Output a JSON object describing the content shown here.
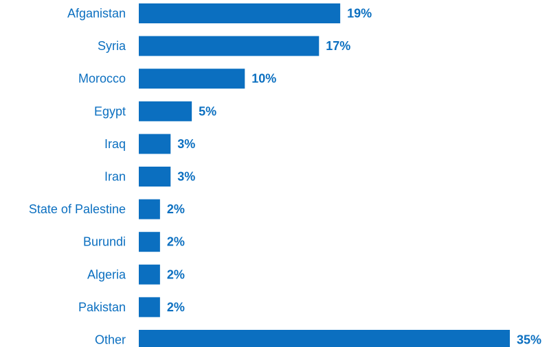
{
  "chart_data": {
    "type": "bar",
    "orientation": "horizontal",
    "title": "",
    "xlabel": "",
    "ylabel": "",
    "categories": [
      "Afganistan",
      "Syria",
      "Morocco",
      "Egypt",
      "Iraq",
      "Iran",
      "State of Palestine",
      "Burundi",
      "Algeria",
      "Pakistan",
      "Other"
    ],
    "values": [
      19,
      17,
      10,
      5,
      3,
      3,
      2,
      2,
      2,
      2,
      35
    ],
    "value_labels": [
      "19%",
      "17%",
      "10%",
      "5%",
      "3%",
      "3%",
      "2%",
      "2%",
      "2%",
      "2%",
      "35%"
    ],
    "unit": "%",
    "xlim": [
      0,
      35
    ],
    "grid": false,
    "legend": "none",
    "bar_color": "#0b6fc0",
    "label_color": "#0b6fc0"
  }
}
